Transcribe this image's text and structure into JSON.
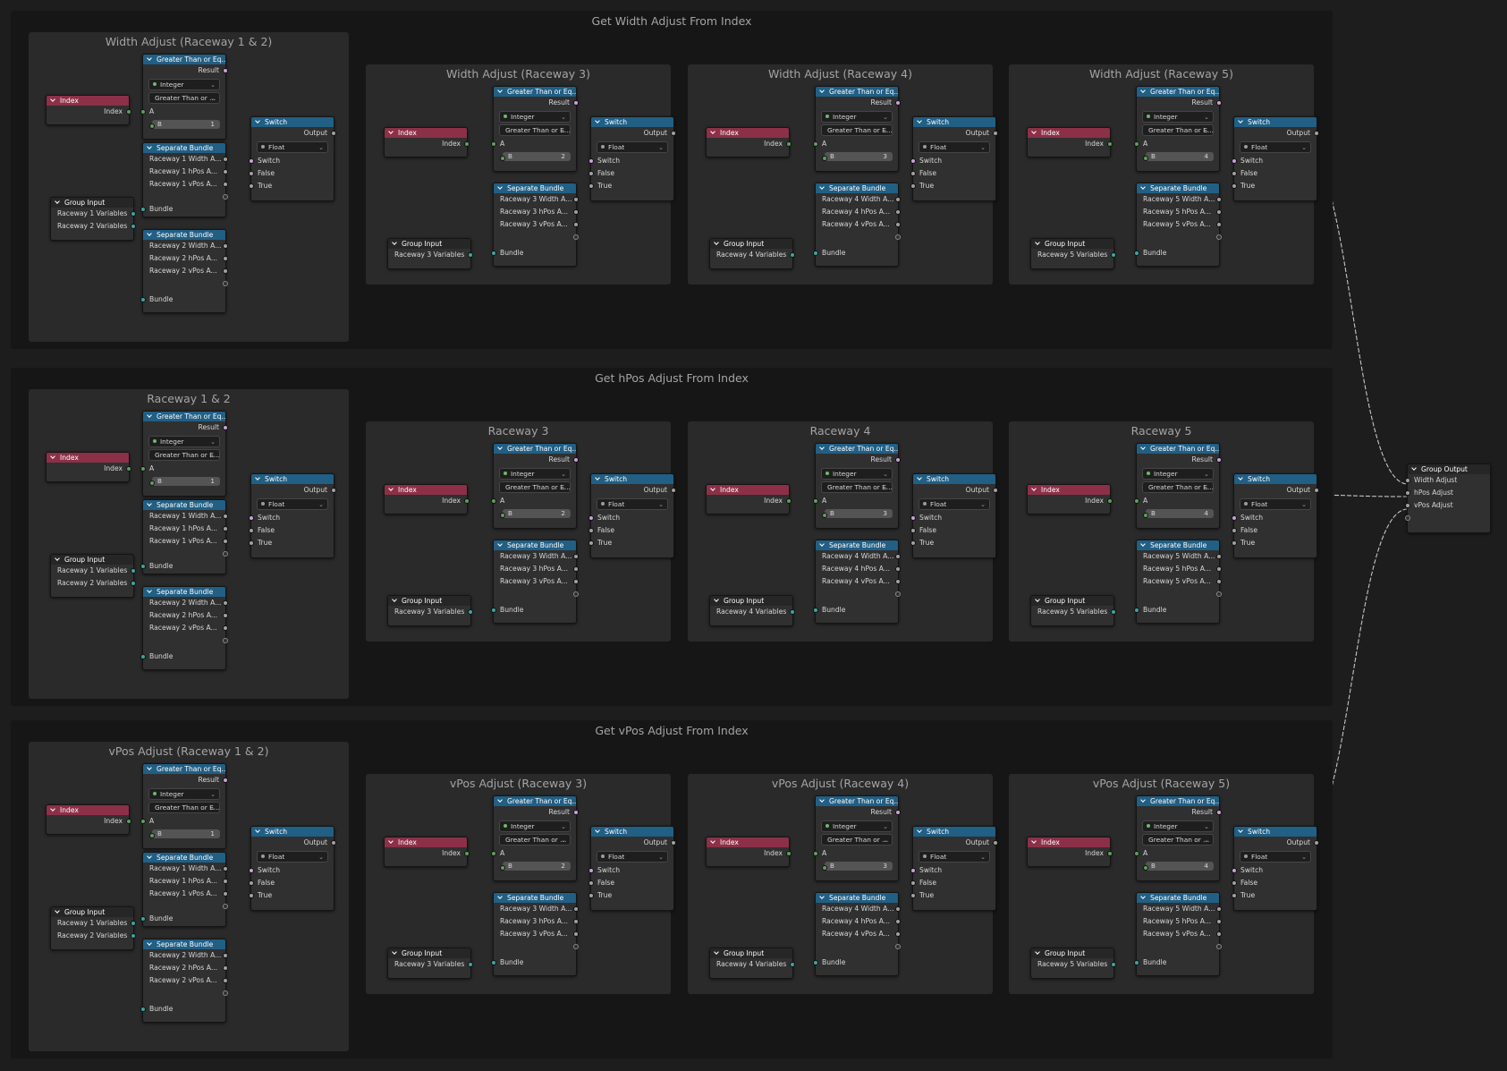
{
  "row_titles": [
    "Get Width Adjust From Index",
    "Get hPos Adjust From Index",
    "Get vPos Adjust From Index"
  ],
  "sub_titles": [
    [
      "Width Adjust (Raceway 1 & 2)",
      "Width Adjust (Raceway 3)",
      "Width Adjust (Raceway 4)",
      "Width Adjust (Raceway 5)"
    ],
    [
      "Raceway 1 & 2",
      "Raceway 3",
      "Raceway 4",
      "Raceway 5"
    ],
    [
      "vPos Adjust (Raceway 1 & 2)",
      "vPos Adjust (Raceway 3)",
      "vPos Adjust (Raceway 4)",
      "vPos Adjust (Raceway 5)"
    ]
  ],
  "compare_header": [
    "Greater Than or Eq...",
    "Greater Than or Eq...",
    "Greater Than or Eq...",
    "Greater Than or Eq..."
  ],
  "compare_mode": [
    [
      "Greater Than or ...",
      "Greater Than or E...",
      "Greater Than or E...",
      "Greater Than or E..."
    ],
    [
      "Greater Than or E...",
      "Greater Than or E...",
      "Greater Than or E...",
      "Greater Than or E..."
    ],
    [
      "Greater Than or E...",
      "Greater Than or ...",
      "Greater Than or ...",
      "Greater Than or ..."
    ]
  ],
  "b_values": [
    "1",
    "2",
    "3",
    "4"
  ],
  "raceway_vars": [
    "Raceway 3 Variables",
    "Raceway 4 Variables",
    "Raceway 5 Variables"
  ],
  "group_output": {
    "title": "Group Output",
    "inputs": [
      "Width Adjust",
      "hPos Adjust",
      "vPos Adjust"
    ]
  },
  "labels": {
    "index": "Index",
    "result": "Result",
    "integer": "Integer",
    "a": "A",
    "b": "B",
    "switch": "Switch",
    "output": "Output",
    "float": "Float",
    "false": "False",
    "true": "True",
    "separate_bundle": "Separate Bundle",
    "group_input": "Group Input",
    "bundle": "Bundle",
    "raceway1_vars": "Raceway 1 Variables",
    "raceway2_vars": "Raceway 2 Variables"
  },
  "bundle_fields": {
    "r1": [
      "Raceway 1 Width A...",
      "Raceway 1 hPos A...",
      "Raceway 1 vPos A..."
    ],
    "r2": [
      "Raceway 2 Width A...",
      "Raceway 2 hPos A...",
      "Raceway 2 vPos A..."
    ],
    "r3": [
      "Raceway 3 Width A...",
      "Raceway 3 hPos A...",
      "Raceway 3 vPos A..."
    ],
    "r4": [
      "Raceway 4 Width A...",
      "Raceway 4 hPos A...",
      "Raceway 4 vPos A..."
    ],
    "r5": [
      "Raceway 5 Width A...",
      "Raceway 5 hPos A...",
      "Raceway 5 vPos A..."
    ]
  },
  "colors": {
    "compare_header": "#215f85",
    "index_header": "#8c3048",
    "wire_float": "#c4c4c4",
    "wire_bool": "#cc9fde",
    "wire_bundle": "#3ba5a0"
  }
}
